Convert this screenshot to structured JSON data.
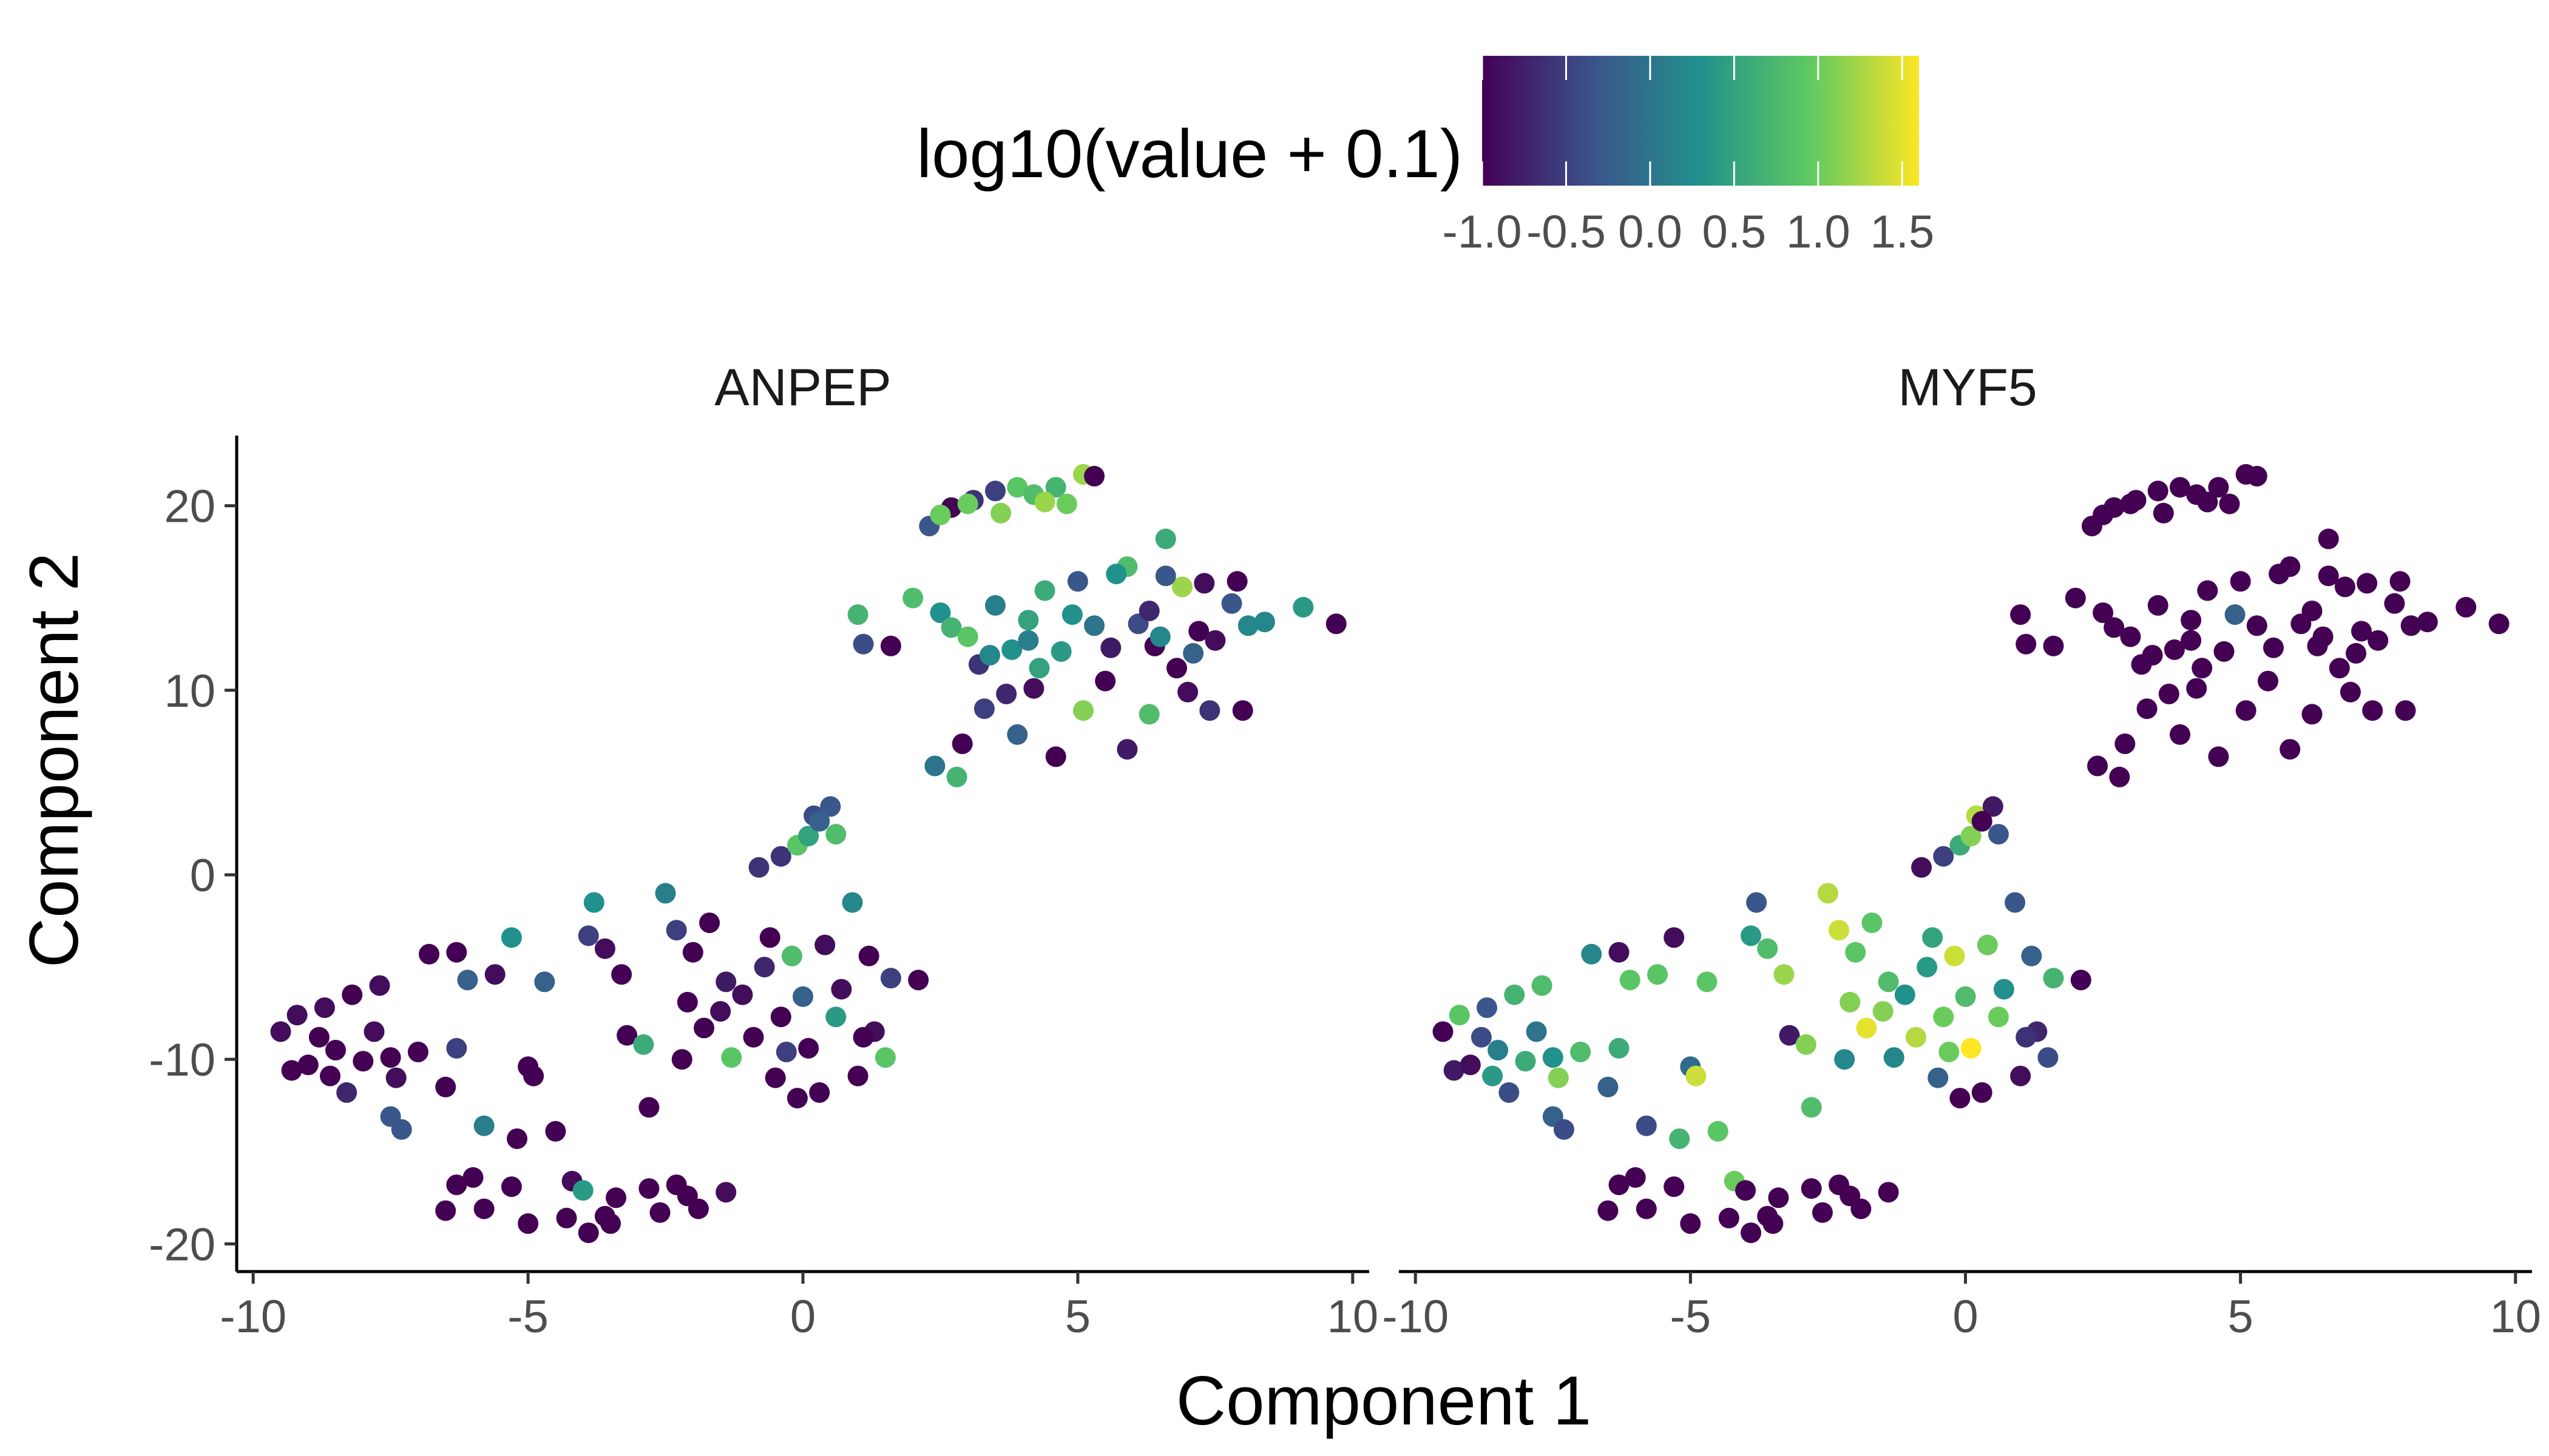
{
  "chart_data": {
    "type": "scatter",
    "xlabel": "Component 1",
    "ylabel": "Component 2",
    "xlim": [
      -10.3,
      10.3
    ],
    "ylim": [
      -21.5,
      23.8
    ],
    "x_ticks": [
      "-10",
      "-5",
      "0",
      "5",
      "10"
    ],
    "x_tick_values": [
      -10,
      -5,
      0,
      5,
      10
    ],
    "y_ticks": [
      "-20",
      "-10",
      "0",
      "10",
      "20"
    ],
    "y_tick_values": [
      -20,
      -10,
      0,
      10,
      20
    ],
    "colorbar": {
      "title": "log10(value + 0.1)",
      "min": -1.0,
      "max": 1.6,
      "tick_labels": [
        "-1.0",
        "-0.5",
        "0.0",
        "0.5",
        "1.0",
        "1.5"
      ],
      "tick_values": [
        -1.0,
        -0.5,
        0.0,
        0.5,
        1.0,
        1.5
      ],
      "colormap": "viridis",
      "colors": [
        "#440154",
        "#3b528b",
        "#21918c",
        "#5ec962",
        "#fde725"
      ]
    },
    "grid": false,
    "facets": [
      "ANPEP",
      "MYF5"
    ],
    "points": [
      [
        2.3,
        18.9,
        -0.3,
        -1.0
      ],
      [
        2.7,
        19.9,
        -1.0,
        -1.0
      ],
      [
        3.1,
        20.3,
        -0.6,
        -1.0
      ],
      [
        3.5,
        20.8,
        -0.5,
        -1.0
      ],
      [
        3.9,
        21.0,
        0.9,
        -1.0
      ],
      [
        4.2,
        20.6,
        0.8,
        -1.0
      ],
      [
        4.6,
        21.0,
        0.7,
        -1.0
      ],
      [
        4.8,
        20.1,
        1.0,
        -1.0
      ],
      [
        5.1,
        21.7,
        1.2,
        -1.0
      ],
      [
        5.3,
        21.6,
        -1.0,
        -1.0
      ],
      [
        3.0,
        20.1,
        1.0,
        -1.0
      ],
      [
        3.6,
        19.6,
        1.1,
        -1.0
      ],
      [
        4.4,
        20.2,
        1.2,
        -1.0
      ],
      [
        2.5,
        19.5,
        1.0,
        -1.0
      ],
      [
        1.0,
        14.1,
        0.7,
        -1.0
      ],
      [
        1.1,
        12.5,
        -0.4,
        -1.0
      ],
      [
        1.6,
        12.4,
        -1.0,
        -1.0
      ],
      [
        2.0,
        15.0,
        0.8,
        -1.0
      ],
      [
        2.5,
        14.2,
        0.3,
        -1.0
      ],
      [
        2.7,
        13.4,
        0.7,
        -1.0
      ],
      [
        3.0,
        12.9,
        0.9,
        -1.0
      ],
      [
        3.2,
        11.4,
        -0.6,
        -1.0
      ],
      [
        3.5,
        14.6,
        0.1,
        -1.0
      ],
      [
        3.8,
        12.2,
        0.3,
        -1.0
      ],
      [
        4.1,
        13.8,
        0.5,
        -1.0
      ],
      [
        4.4,
        15.4,
        0.6,
        -1.0
      ],
      [
        4.7,
        12.1,
        0.4,
        -1.0
      ],
      [
        5.0,
        15.9,
        -0.3,
        -1.0
      ],
      [
        5.3,
        13.5,
        0.0,
        -1.0
      ],
      [
        5.6,
        12.3,
        -0.8,
        -1.0
      ],
      [
        5.9,
        16.7,
        0.8,
        -1.0
      ],
      [
        6.1,
        13.6,
        -0.4,
        -1.0
      ],
      [
        6.4,
        12.4,
        -1.0,
        -1.0
      ],
      [
        6.6,
        18.2,
        0.6,
        -1.0
      ],
      [
        6.9,
        15.6,
        1.2,
        -1.0
      ],
      [
        7.2,
        13.2,
        -1.0,
        -1.0
      ],
      [
        7.5,
        12.7,
        -0.9,
        -1.0
      ],
      [
        7.8,
        14.7,
        -0.3,
        -1.0
      ],
      [
        8.1,
        13.5,
        0.2,
        -1.0
      ],
      [
        8.4,
        13.7,
        0.2,
        -1.0
      ],
      [
        9.1,
        14.5,
        0.4,
        -1.0
      ],
      [
        9.7,
        13.6,
        -1.0,
        -1.0
      ],
      [
        8.0,
        8.9,
        -1.0,
        -1.0
      ],
      [
        7.0,
        9.9,
        -0.9,
        -1.0
      ],
      [
        6.3,
        8.7,
        0.8,
        -1.0
      ],
      [
        5.9,
        6.8,
        -0.8,
        -1.0
      ],
      [
        5.1,
        8.9,
        1.1,
        -1.0
      ],
      [
        4.6,
        6.4,
        -1.0,
        -1.0
      ],
      [
        4.2,
        10.1,
        -0.9,
        -1.0
      ],
      [
        3.7,
        9.8,
        -0.7,
        -1.0
      ],
      [
        3.3,
        9.0,
        -0.5,
        -1.0
      ],
      [
        2.9,
        7.1,
        -1.0,
        -1.0
      ],
      [
        2.4,
        5.9,
        0.0,
        -1.0
      ],
      [
        2.8,
        5.3,
        0.7,
        -1.0
      ],
      [
        3.9,
        7.6,
        -0.2,
        -1.0
      ],
      [
        4.3,
        11.2,
        0.5,
        -1.0
      ],
      [
        5.5,
        10.5,
        -1.0,
        -1.0
      ],
      [
        6.8,
        11.2,
        -1.0,
        -1.0
      ],
      [
        7.4,
        8.9,
        -0.6,
        -1.0
      ],
      [
        6.3,
        14.3,
        -0.7,
        -1.0
      ],
      [
        6.6,
        16.2,
        -0.3,
        -1.0
      ],
      [
        7.3,
        15.8,
        -0.9,
        -1.0
      ],
      [
        7.9,
        15.9,
        -1.0,
        -1.0
      ],
      [
        3.4,
        11.9,
        0.2,
        -1.0
      ],
      [
        4.9,
        14.1,
        0.3,
        -0.2
      ],
      [
        5.7,
        16.3,
        0.3,
        -1.0
      ],
      [
        6.5,
        12.9,
        0.2,
        -1.0
      ],
      [
        7.1,
        12.0,
        -0.2,
        -1.0
      ],
      [
        4.1,
        12.7,
        0.1,
        -1.0
      ],
      [
        -0.8,
        0.4,
        -0.6,
        -0.9
      ],
      [
        -0.4,
        1.0,
        -0.6,
        -0.5
      ],
      [
        -0.1,
        1.6,
        0.9,
        0.6
      ],
      [
        0.1,
        2.1,
        0.5,
        1.1
      ],
      [
        0.2,
        3.2,
        -0.4,
        1.3
      ],
      [
        0.5,
        3.7,
        -0.3,
        -0.8
      ],
      [
        0.6,
        2.2,
        0.8,
        -0.3
      ],
      [
        0.3,
        2.9,
        -0.2,
        -1.0
      ],
      [
        -9.5,
        -8.5,
        -0.9,
        -1.0
      ],
      [
        -9.3,
        -10.6,
        -1.0,
        -0.8
      ],
      [
        -9.2,
        -7.6,
        -0.9,
        0.9
      ],
      [
        -9.0,
        -10.3,
        -1.0,
        -0.9
      ],
      [
        -8.8,
        -8.8,
        -1.0,
        -0.4
      ],
      [
        -8.7,
        -7.2,
        -0.9,
        -0.3
      ],
      [
        -8.6,
        -10.9,
        -1.0,
        0.4
      ],
      [
        -8.5,
        -9.5,
        -1.0,
        0.1
      ],
      [
        -8.3,
        -11.8,
        -0.7,
        -0.4
      ],
      [
        -8.2,
        -6.5,
        -1.0,
        0.7
      ],
      [
        -8.0,
        -10.1,
        -1.0,
        0.6
      ],
      [
        -7.8,
        -8.5,
        -0.9,
        0.0
      ],
      [
        -7.7,
        -6.0,
        -0.9,
        0.8
      ],
      [
        -7.5,
        -9.9,
        -1.0,
        0.3
      ],
      [
        -7.5,
        -13.1,
        -0.3,
        -0.2
      ],
      [
        -7.4,
        -11.0,
        -0.9,
        1.1
      ],
      [
        -7.3,
        -13.8,
        -0.3,
        -0.4
      ],
      [
        -7.0,
        -9.6,
        -1.0,
        0.8
      ],
      [
        -6.8,
        -4.3,
        -1.0,
        0.2
      ],
      [
        -6.5,
        -11.5,
        -1.0,
        -0.2
      ],
      [
        -6.3,
        -4.2,
        -1.0,
        -0.9
      ],
      [
        -6.3,
        -9.4,
        -0.5,
        0.6
      ],
      [
        -6.1,
        -5.7,
        -0.2,
        0.9
      ],
      [
        -5.8,
        -13.6,
        0.1,
        -0.4
      ],
      [
        -5.6,
        -5.4,
        -0.9,
        0.9
      ],
      [
        -5.3,
        -3.4,
        0.3,
        -0.9
      ],
      [
        -5.0,
        -10.4,
        -1.0,
        -0.1
      ],
      [
        -4.7,
        -5.8,
        -0.2,
        0.9
      ],
      [
        -4.9,
        -10.9,
        -1.0,
        1.4
      ],
      [
        -5.2,
        -14.3,
        -1.0,
        0.7
      ],
      [
        -4.5,
        -13.9,
        -1.0,
        0.9
      ],
      [
        -4.2,
        -16.6,
        -0.9,
        1.0
      ],
      [
        -6.0,
        -16.4,
        -1.0,
        -1.0
      ],
      [
        -6.3,
        -16.8,
        -1.0,
        -1.0
      ],
      [
        -5.8,
        -18.1,
        -1.0,
        -1.0
      ],
      [
        -6.5,
        -18.2,
        -1.0,
        -1.0
      ],
      [
        -5.3,
        -16.9,
        -1.0,
        -1.0
      ],
      [
        -5.0,
        -18.9,
        -1.0,
        -1.0
      ],
      [
        -4.3,
        -18.6,
        -1.0,
        -1.0
      ],
      [
        -4.0,
        -17.1,
        0.4,
        -1.0
      ],
      [
        -3.9,
        -19.4,
        -1.0,
        -1.0
      ],
      [
        -3.6,
        -18.5,
        -1.0,
        -1.0
      ],
      [
        -3.4,
        -17.5,
        -1.0,
        -1.0
      ],
      [
        -3.5,
        -18.9,
        -1.0,
        -1.0
      ],
      [
        -2.8,
        -17.0,
        -1.0,
        -1.0
      ],
      [
        -2.6,
        -18.3,
        -1.0,
        -1.0
      ],
      [
        -2.3,
        -16.8,
        -1.0,
        -1.0
      ],
      [
        -1.9,
        -18.1,
        -1.0,
        -1.0
      ],
      [
        -1.4,
        -17.2,
        -0.9,
        -1.0
      ],
      [
        -2.1,
        -17.4,
        -1.0,
        -1.0
      ],
      [
        -3.8,
        -1.5,
        0.3,
        -0.3
      ],
      [
        -3.9,
        -3.3,
        -0.5,
        0.4
      ],
      [
        -3.6,
        -4.0,
        -0.9,
        0.8
      ],
      [
        -3.3,
        -5.4,
        -1.0,
        1.2
      ],
      [
        -3.2,
        -8.7,
        -1.0,
        -0.8
      ],
      [
        -2.9,
        -9.2,
        0.6,
        1.1
      ],
      [
        -2.8,
        -12.6,
        -1.0,
        0.8
      ],
      [
        -2.5,
        -1.0,
        0.1,
        1.3
      ],
      [
        -2.3,
        -3.0,
        -0.5,
        1.4
      ],
      [
        -2.2,
        -10.0,
        -1.0,
        0.2
      ],
      [
        -2.1,
        -6.9,
        -1.0,
        1.1
      ],
      [
        -2.0,
        -4.2,
        -1.0,
        0.9
      ],
      [
        -1.8,
        -8.3,
        -1.0,
        1.5
      ],
      [
        -1.7,
        -2.6,
        -1.0,
        0.9
      ],
      [
        -1.5,
        -7.4,
        -0.9,
        1.1
      ],
      [
        -1.4,
        -5.8,
        -0.8,
        0.8
      ],
      [
        -1.3,
        -9.9,
        0.9,
        0.2
      ],
      [
        -1.1,
        -6.5,
        -0.9,
        0.3
      ],
      [
        -0.9,
        -8.8,
        -1.0,
        1.3
      ],
      [
        -0.7,
        -5.0,
        -0.7,
        0.4
      ],
      [
        -0.6,
        -3.4,
        -1.0,
        0.5
      ],
      [
        -0.5,
        -11.0,
        -1.0,
        -0.2
      ],
      [
        -0.4,
        -7.7,
        -1.0,
        1.0
      ],
      [
        -0.3,
        -9.6,
        -0.5,
        1.0
      ],
      [
        -0.2,
        -4.4,
        0.8,
        1.4
      ],
      [
        -0.1,
        -12.1,
        -1.0,
        -1.0
      ],
      [
        0.0,
        -6.6,
        -0.2,
        0.8
      ],
      [
        0.1,
        -9.4,
        -1.0,
        1.6
      ],
      [
        0.3,
        -11.8,
        -1.0,
        -1.0
      ],
      [
        0.4,
        -3.8,
        -0.9,
        1.0
      ],
      [
        0.6,
        -7.7,
        0.4,
        1.0
      ],
      [
        0.7,
        -6.2,
        -0.9,
        0.3
      ],
      [
        0.9,
        -1.5,
        0.2,
        -0.3
      ],
      [
        1.0,
        -10.9,
        -1.0,
        -0.9
      ],
      [
        1.2,
        -4.4,
        -1.0,
        -0.2
      ],
      [
        1.3,
        -8.5,
        -0.9,
        -0.7
      ],
      [
        1.5,
        -9.9,
        0.9,
        -0.4
      ],
      [
        1.6,
        -5.6,
        -0.5,
        0.7
      ],
      [
        2.1,
        -5.7,
        -1.0,
        -1.0
      ],
      [
        1.1,
        -8.8,
        -1.0,
        -0.6
      ]
    ]
  }
}
